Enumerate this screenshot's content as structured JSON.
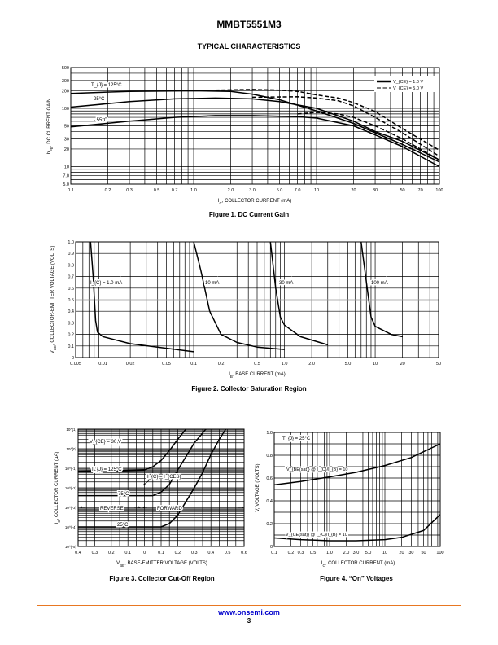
{
  "header": {
    "part_number": "MMBT5551M3",
    "section_title": "TYPICAL CHARACTERISTICS"
  },
  "footer": {
    "link": "www.onsemi.com",
    "page_number": "3"
  },
  "chart_data": [
    {
      "type": "line",
      "title": "Figure 1. DC Current Gain",
      "xlabel": "I_{C}, COLLECTOR CURRENT (mA)",
      "ylabel": "h_{FE}, DC CURRENT GAIN",
      "xscale": "log",
      "yscale": "log",
      "xlim": [
        0.1,
        100
      ],
      "ylim": [
        5,
        500
      ],
      "grid": true,
      "x_ticks": [
        "0.1",
        "0.2",
        "0.3",
        "0.5",
        "0.7",
        "1.0",
        "2.0",
        "3.0",
        "5.0",
        "7.0",
        "10",
        "20",
        "30",
        "50",
        "70",
        "100"
      ],
      "x_tick_values": [
        0.1,
        0.2,
        0.3,
        0.5,
        0.7,
        1,
        2,
        3,
        5,
        7,
        10,
        20,
        30,
        50,
        70,
        100
      ],
      "y_ticks": [
        "500",
        "300",
        "200",
        "100",
        "50",
        "30",
        "20",
        "10",
        "7.0",
        "5.0"
      ],
      "y_tick_values": [
        500,
        300,
        200,
        100,
        50,
        30,
        20,
        10,
        7,
        5
      ],
      "legend": {
        "placement": "top-right",
        "entries": [
          {
            "label": "V_{CE} = 1.0 V",
            "style": "solid"
          },
          {
            "label": "V_{CE} = 5.0 V",
            "style": "dashed"
          }
        ]
      },
      "annotations": [
        "T_{J} = 125°C",
        "25°C",
        "- 55°C"
      ],
      "series": [
        {
          "name": "TJ=125°C, VCE=1.0V",
          "style": "solid",
          "points": [
            [
              0.1,
              180
            ],
            [
              0.3,
              195
            ],
            [
              1,
              200
            ],
            [
              2,
              195
            ],
            [
              3,
              175
            ],
            [
              5,
              140
            ],
            [
              10,
              90
            ],
            [
              20,
              55
            ],
            [
              30,
              38
            ],
            [
              50,
              24
            ],
            [
              100,
              12
            ]
          ]
        },
        {
          "name": "TJ=125°C, VCE=5.0V",
          "style": "dashed",
          "points": [
            [
              1.5,
              205
            ],
            [
              3,
              210
            ],
            [
              5,
              205
            ],
            [
              7,
              195
            ],
            [
              10,
              170
            ],
            [
              15,
              150
            ],
            [
              20,
              125
            ],
            [
              30,
              88
            ],
            [
              50,
              45
            ],
            [
              100,
              19
            ]
          ]
        },
        {
          "name": "TJ=25°C, VCE=1.0V",
          "style": "solid",
          "points": [
            [
              0.1,
              105
            ],
            [
              0.3,
              130
            ],
            [
              0.7,
              145
            ],
            [
              1.5,
              150
            ],
            [
              3,
              145
            ],
            [
              5,
              130
            ],
            [
              10,
              100
            ],
            [
              20,
              60
            ],
            [
              30,
              40
            ],
            [
              50,
              27
            ],
            [
              100,
              13
            ]
          ]
        },
        {
          "name": "TJ=25°C, VCE=5.0V",
          "style": "dashed",
          "points": [
            [
              3,
              155
            ],
            [
              7,
              158
            ],
            [
              10,
              150
            ],
            [
              15,
              135
            ],
            [
              20,
              110
            ],
            [
              30,
              70
            ],
            [
              50,
              38
            ],
            [
              100,
              15
            ]
          ]
        },
        {
          "name": "TJ=-55°C, VCE=1.0V",
          "style": "solid",
          "points": [
            [
              0.1,
              48
            ],
            [
              0.3,
              60
            ],
            [
              0.7,
              70
            ],
            [
              1.5,
              75
            ],
            [
              3,
              75
            ],
            [
              7,
              72
            ],
            [
              10,
              68
            ],
            [
              20,
              50
            ],
            [
              30,
              35
            ],
            [
              50,
              22
            ],
            [
              100,
              10
            ]
          ]
        },
        {
          "name": "TJ=-55°C, VCE=5.0V",
          "style": "dashed",
          "points": [
            [
              7,
              80
            ],
            [
              10,
              85
            ],
            [
              15,
              80
            ],
            [
              20,
              70
            ],
            [
              30,
              50
            ],
            [
              50,
              30
            ],
            [
              100,
              13
            ]
          ]
        }
      ]
    },
    {
      "type": "line",
      "title": "Figure 2. Collector Saturation Region",
      "xlabel": "I_{B}, BASE CURRENT (mA)",
      "ylabel": "V_{CE}, COLLECTOR-EMITTER VOLTAGE (VOLTS)",
      "xscale": "log",
      "yscale": "linear",
      "xlim": [
        0.005,
        50
      ],
      "ylim": [
        0,
        1.0
      ],
      "grid": true,
      "x_ticks": [
        "0.005",
        "0.01",
        "0.02",
        "0.05",
        "0.1",
        "0.2",
        "0.5",
        "1.0",
        "2.0",
        "5.0",
        "10",
        "20",
        "50"
      ],
      "x_tick_values": [
        0.005,
        0.01,
        0.02,
        0.05,
        0.1,
        0.2,
        0.5,
        1,
        2,
        5,
        10,
        20,
        50
      ],
      "y_ticks": [
        "1.0",
        "0.9",
        "0.8",
        "0.7",
        "0.6",
        "0.5",
        "0.4",
        "0.3",
        "0.2",
        "0.1",
        "0"
      ],
      "y_tick_values": [
        1,
        0.9,
        0.8,
        0.7,
        0.6,
        0.5,
        0.4,
        0.3,
        0.2,
        0.1,
        0
      ],
      "annotations": [
        "I_{C} = 1.0 mA",
        "10 mA",
        "30 mA",
        "100 mA"
      ],
      "series": [
        {
          "name": "IC=1.0mA",
          "style": "solid",
          "points": [
            [
              0.0073,
              1.0
            ],
            [
              0.0078,
              0.7
            ],
            [
              0.0083,
              0.32
            ],
            [
              0.0087,
              0.22
            ],
            [
              0.01,
              0.18
            ],
            [
              0.02,
              0.12
            ],
            [
              0.05,
              0.08
            ],
            [
              0.1,
              0.05
            ]
          ]
        },
        {
          "name": "IC=10mA",
          "style": "solid",
          "points": [
            [
              0.1,
              1.0
            ],
            [
              0.12,
              0.75
            ],
            [
              0.15,
              0.4
            ],
            [
              0.2,
              0.2
            ],
            [
              0.3,
              0.13
            ],
            [
              0.5,
              0.09
            ],
            [
              1.0,
              0.07
            ]
          ]
        },
        {
          "name": "IC=30mA",
          "style": "solid",
          "points": [
            [
              0.7,
              1.0
            ],
            [
              0.8,
              0.6
            ],
            [
              0.9,
              0.35
            ],
            [
              1.0,
              0.28
            ],
            [
              1.5,
              0.18
            ],
            [
              3.0,
              0.11
            ]
          ]
        },
        {
          "name": "IC=100mA",
          "style": "solid",
          "points": [
            [
              7,
              1.0
            ],
            [
              8,
              0.65
            ],
            [
              9,
              0.35
            ],
            [
              10,
              0.27
            ],
            [
              15,
              0.2
            ],
            [
              20,
              0.18
            ]
          ]
        }
      ]
    },
    {
      "type": "line",
      "title": "Figure 3. Collector Cut-Off Region",
      "xlabel": "V_{BE}, BASE-EMITTER VOLTAGE (VOLTS)",
      "ylabel": "I_{C}, COLLECTOR CURRENT (μA)",
      "xscale": "linear",
      "yscale": "log",
      "xlim": [
        -0.4,
        0.6
      ],
      "ylim": [
        1e-05,
        10
      ],
      "grid": true,
      "x_ticks": [
        "0.4",
        "0.3",
        "0.2",
        "0.1",
        "0",
        "0.1",
        "0.2",
        "0.3",
        "0.4",
        "0.5",
        "0.6"
      ],
      "x_tick_values": [
        -0.4,
        -0.3,
        -0.2,
        -0.1,
        0,
        0.1,
        0.2,
        0.3,
        0.4,
        0.5,
        0.6
      ],
      "y_ticks": [
        "10^{1}",
        "10^{0}",
        "10^{-1}",
        "10^{-2}",
        "10^{-3}",
        "10^{-4}",
        "10^{-5}"
      ],
      "y_tick_values": [
        10,
        1,
        0.1,
        0.01,
        0.001,
        0.0001,
        1e-05
      ],
      "annotations": [
        "V_{CE} = 30 V",
        "T_{J} = 125°C",
        "I_{C} = I_{CES}",
        "75°C",
        "REVERSE",
        "FORWARD",
        "25°C"
      ],
      "series": [
        {
          "name": "TJ=125°C",
          "style": "solid",
          "points": [
            [
              -0.4,
              0.07
            ],
            [
              0,
              0.08
            ],
            [
              0.05,
              0.12
            ],
            [
              0.1,
              0.25
            ],
            [
              0.15,
              0.8
            ],
            [
              0.2,
              3
            ],
            [
              0.25,
              10
            ]
          ]
        },
        {
          "name": "TJ=75°C",
          "style": "solid",
          "points": [
            [
              -0.4,
              0.004
            ],
            [
              0.05,
              0.004
            ],
            [
              0.1,
              0.006
            ],
            [
              0.15,
              0.015
            ],
            [
              0.2,
              0.08
            ],
            [
              0.25,
              0.4
            ],
            [
              0.3,
              2
            ],
            [
              0.37,
              10
            ]
          ]
        },
        {
          "name": "TJ=25°C",
          "style": "solid",
          "points": [
            [
              -0.4,
              0.0001
            ],
            [
              0.1,
              0.0001
            ],
            [
              0.15,
              0.00015
            ],
            [
              0.2,
              0.0004
            ],
            [
              0.25,
              0.002
            ],
            [
              0.3,
              0.01
            ],
            [
              0.35,
              0.06
            ],
            [
              0.4,
              0.5
            ],
            [
              0.45,
              3
            ],
            [
              0.49,
              10
            ]
          ]
        }
      ]
    },
    {
      "type": "line",
      "title": "Figure 4. “On” Voltages",
      "xlabel": "I_{C}, COLLECTOR CURRENT (mA)",
      "ylabel": "V, VOLTAGE (VOLTS)",
      "xscale": "log",
      "yscale": "linear",
      "xlim": [
        0.1,
        100
      ],
      "ylim": [
        0,
        1.0
      ],
      "grid": true,
      "x_ticks": [
        "0.1",
        "0.2",
        "0.3",
        "0.5",
        "1.0",
        "2.0",
        "3.0",
        "5.0",
        "10",
        "20",
        "30",
        "50",
        "100"
      ],
      "x_tick_values": [
        0.1,
        0.2,
        0.3,
        0.5,
        1,
        2,
        3,
        5,
        10,
        20,
        30,
        50,
        100
      ],
      "y_ticks": [
        "1.0",
        "0.8",
        "0.6",
        "0.4",
        "0.2",
        "0"
      ],
      "y_tick_values": [
        1,
        0.8,
        0.6,
        0.4,
        0.2,
        0
      ],
      "annotations": [
        "T_{J} = 25°C",
        "V_{BE(sat)} @ I_{C}/I_{B} = 10",
        "V_{CE(sat)} @ I_{C}/I_{B} = 10"
      ],
      "series": [
        {
          "name": "VBE(sat)",
          "style": "solid",
          "points": [
            [
              0.1,
              0.54
            ],
            [
              0.3,
              0.57
            ],
            [
              1,
              0.61
            ],
            [
              3,
              0.65
            ],
            [
              10,
              0.71
            ],
            [
              30,
              0.78
            ],
            [
              100,
              0.9
            ]
          ]
        },
        {
          "name": "VCE(sat)",
          "style": "solid",
          "points": [
            [
              0.1,
              0.075
            ],
            [
              0.3,
              0.06
            ],
            [
              1,
              0.05
            ],
            [
              3,
              0.05
            ],
            [
              10,
              0.06
            ],
            [
              20,
              0.08
            ],
            [
              50,
              0.14
            ],
            [
              100,
              0.28
            ]
          ]
        }
      ]
    }
  ]
}
